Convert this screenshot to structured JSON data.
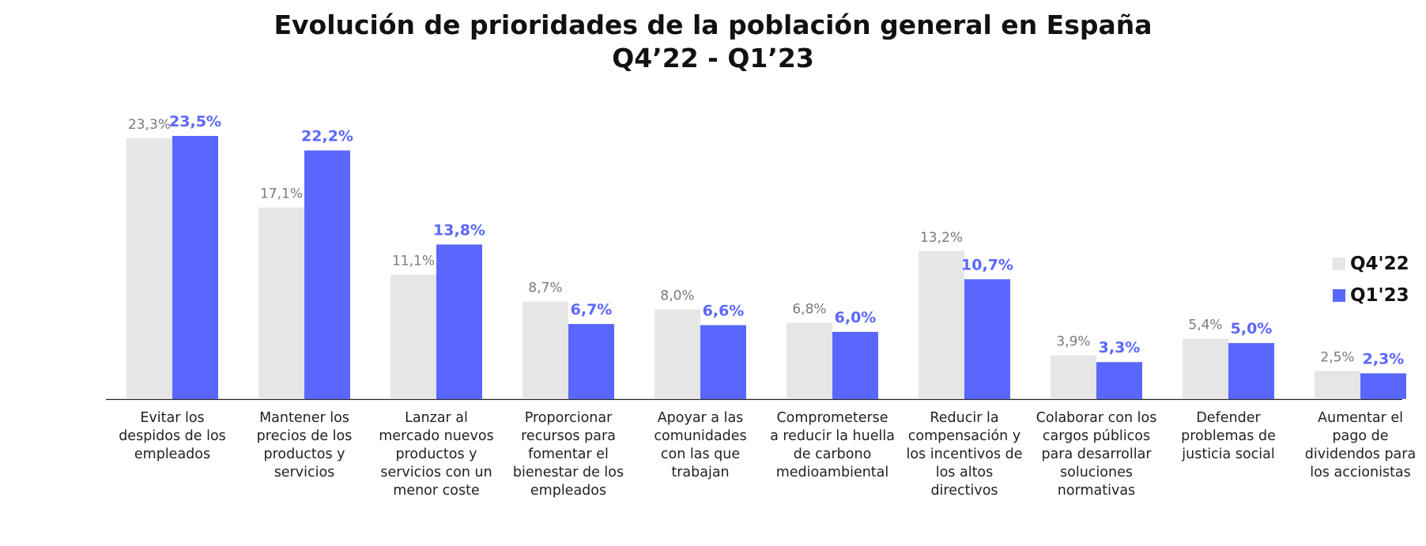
{
  "chart_data": {
    "type": "bar",
    "title": "Evolución de prioridades de la población general en España",
    "subtitle": "Q4’22 - Q1’23",
    "categories": [
      [
        "Evitar los",
        "despidos de los",
        "empleados"
      ],
      [
        "Mantener los",
        "precios de los",
        "productos y",
        "servicios"
      ],
      [
        "Lanzar al",
        "mercado nuevos",
        "productos y",
        "servicios con un",
        "menor coste"
      ],
      [
        "Proporcionar",
        "recursos para",
        "fomentar el",
        "bienestar de los",
        "empleados"
      ],
      [
        "Apoyar a las",
        "comunidades",
        "con las que",
        "trabajan"
      ],
      [
        "Comprometerse",
        "a reducir la huella",
        "de carbono",
        "medioambiental"
      ],
      [
        "Reducir la",
        "compensación y",
        "los incentivos de",
        "los altos",
        "directivos"
      ],
      [
        "Colaborar con los",
        "cargos públicos",
        "para desarrollar",
        "soluciones",
        "normativas"
      ],
      [
        "Defender",
        "problemas de",
        "justicia social"
      ],
      [
        "Aumentar el",
        "pago de",
        "dividendos para",
        "los accionistas"
      ]
    ],
    "series": [
      {
        "name": "Q4'22",
        "color": "#e6e6e6",
        "label_color": "#7a7a7a",
        "values": [
          23.3,
          17.1,
          11.1,
          8.7,
          8.0,
          6.8,
          13.2,
          3.9,
          5.4,
          2.5
        ],
        "labels": [
          "23,3%",
          "17,1%",
          "11,1%",
          "8,7%",
          "8,0%",
          "6,8%",
          "13,2%",
          "3,9%",
          "5,4%",
          "2,5%"
        ]
      },
      {
        "name": "Q1'23",
        "color": "#5a67ff",
        "label_color": "#5a67ff",
        "values": [
          23.5,
          22.2,
          13.8,
          6.7,
          6.6,
          6.0,
          10.7,
          3.3,
          5.0,
          2.3
        ],
        "labels": [
          "23,5%",
          "22,2%",
          "13,8%",
          "6,7%",
          "6,6%",
          "6,0%",
          "10,7%",
          "3,3%",
          "5,0%",
          "2,3%"
        ]
      }
    ],
    "ylim": [
      0,
      23.5
    ],
    "grid": false,
    "legend_position": "right",
    "baseline_color": "#222222"
  }
}
